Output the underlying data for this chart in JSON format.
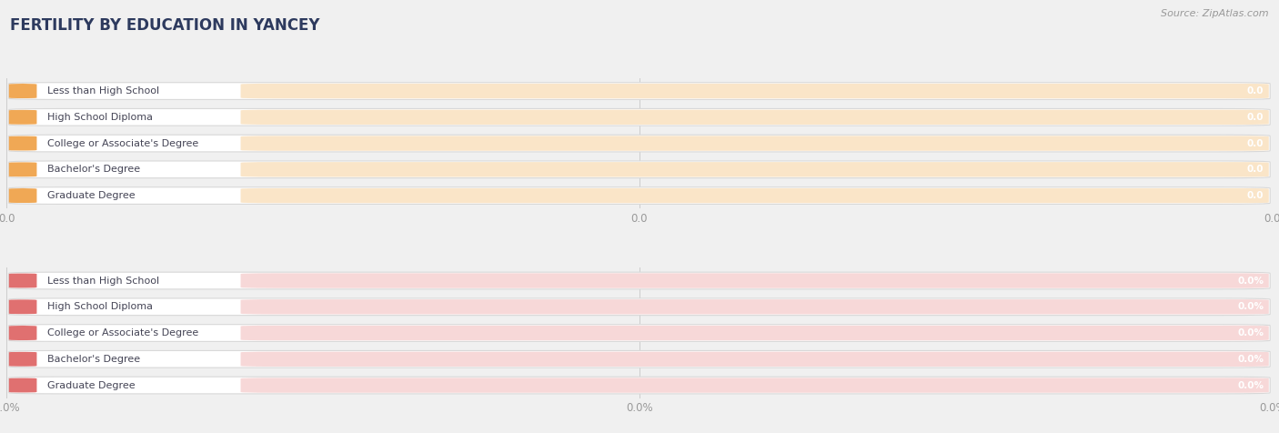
{
  "title": "FERTILITY BY EDUCATION IN YANCEY",
  "source": "Source: ZipAtlas.com",
  "top_categories": [
    "Less than High School",
    "High School Diploma",
    "College or Associate's Degree",
    "Bachelor's Degree",
    "Graduate Degree"
  ],
  "top_values": [
    0.0,
    0.0,
    0.0,
    0.0,
    0.0
  ],
  "top_labels": [
    "0.0",
    "0.0",
    "0.0",
    "0.0",
    "0.0"
  ],
  "bottom_categories": [
    "Less than High School",
    "High School Diploma",
    "College or Associate's Degree",
    "Bachelor's Degree",
    "Graduate Degree"
  ],
  "bottom_values": [
    0.0,
    0.0,
    0.0,
    0.0,
    0.0
  ],
  "bottom_labels": [
    "0.0%",
    "0.0%",
    "0.0%",
    "0.0%",
    "0.0%"
  ],
  "top_bar_color": "#f5c98a",
  "top_icon_color": "#f0a855",
  "top_bg_color": "#fae5c8",
  "bottom_bar_color": "#f0a8a8",
  "bottom_icon_color": "#e07070",
  "bottom_bg_color": "#f7d8d8",
  "bar_text_color": "#ffffff",
  "label_text_color": "#444455",
  "axis_tick_color": "#999999",
  "background_color": "#f0f0f0",
  "row_bg_color": "#ffffff",
  "top_xlabel": "0.0",
  "bottom_xlabel": "0.0%",
  "title_color": "#2d3a5e",
  "source_color": "#999999"
}
